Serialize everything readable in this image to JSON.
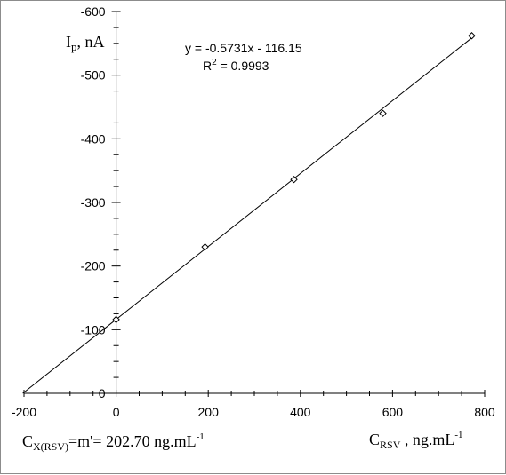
{
  "chart_data": {
    "type": "scatter",
    "series": [
      {
        "x": [
          0,
          193,
          386,
          579,
          772
        ],
        "y": [
          -116,
          -230,
          -336,
          -440,
          -562
        ]
      }
    ],
    "trendline": {
      "slope": -0.5731,
      "intercept": -116.15
    },
    "xlim": [
      -200,
      800
    ],
    "ylim": [
      0,
      -600
    ],
    "x_ticks": [
      -200,
      0,
      200,
      400,
      600,
      800
    ],
    "y_ticks": [
      0,
      -100,
      -200,
      -300,
      -400,
      -500,
      -600
    ],
    "equation_text": "y = -0.5731x - 116.15",
    "r2": {
      "prefix": "R",
      "sup": "2",
      "value": " = 0.9993"
    },
    "ylabel": {
      "main": "I",
      "sub": "p",
      "rest": ", nA"
    },
    "xlabel": {
      "main": "C",
      "sub": "RSV",
      "rest": " , ng.mL",
      "sup": "-1"
    },
    "annotation": {
      "main": "C",
      "sub": "X(RSV)",
      "rest": "=m'= 202.70 ng.mL",
      "sup": "-1"
    },
    "grid": false,
    "legend": "none"
  }
}
